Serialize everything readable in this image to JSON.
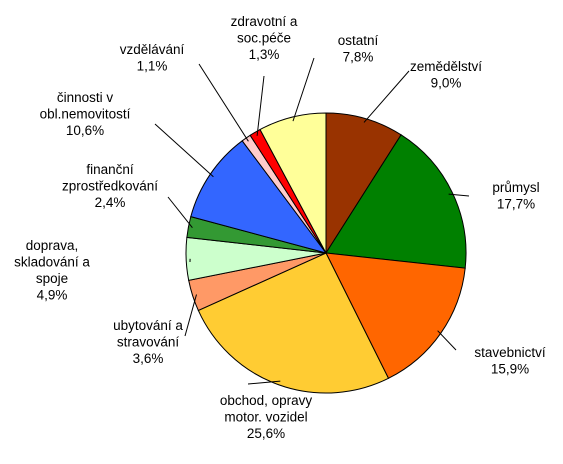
{
  "chart_data": {
    "type": "pie",
    "title": "",
    "start_angle_deg": 0,
    "direction": "clockwise",
    "legend": "none",
    "slices": [
      {
        "label": [
          "zemědělství"
        ],
        "value_text": "9,0%",
        "value": 9.0,
        "color": "#993300"
      },
      {
        "label": [
          "průmysl"
        ],
        "value_text": "17,7%",
        "value": 17.7,
        "color": "#008000"
      },
      {
        "label": [
          "stavebnictví"
        ],
        "value_text": "15,9%",
        "value": 15.9,
        "color": "#FF6600"
      },
      {
        "label": [
          "obchod, opravy",
          "motor. vozidel"
        ],
        "value_text": "25,6%",
        "value": 25.6,
        "color": "#FFCC33"
      },
      {
        "label": [
          "ubytování a",
          "stravování"
        ],
        "value_text": "3,6%",
        "value": 3.6,
        "color": "#FF9966"
      },
      {
        "label": [
          "doprava,",
          "skladování a",
          "spoje"
        ],
        "value_text": "4,9%",
        "value": 4.9,
        "color": "#CCFFCC"
      },
      {
        "label": [
          "finanční",
          "zprostředkování"
        ],
        "value_text": "2,4%",
        "value": 2.4,
        "color": "#339933"
      },
      {
        "label": [
          "činnosti v",
          "obl.nemovitostí"
        ],
        "value_text": "10,6%",
        "value": 10.6,
        "color": "#3366FF"
      },
      {
        "label": [
          "vzdělávání"
        ],
        "value_text": "1,1%",
        "value": 1.1,
        "color": "#FFCCCC"
      },
      {
        "label": [
          "zdravotní a",
          "soc.péče"
        ],
        "value_text": "1,3%",
        "value": 1.3,
        "color": "#FF0000"
      },
      {
        "label": [
          "ostatní"
        ],
        "value_text": "7,8%",
        "value": 7.8,
        "color": "#FFFF99"
      }
    ]
  }
}
